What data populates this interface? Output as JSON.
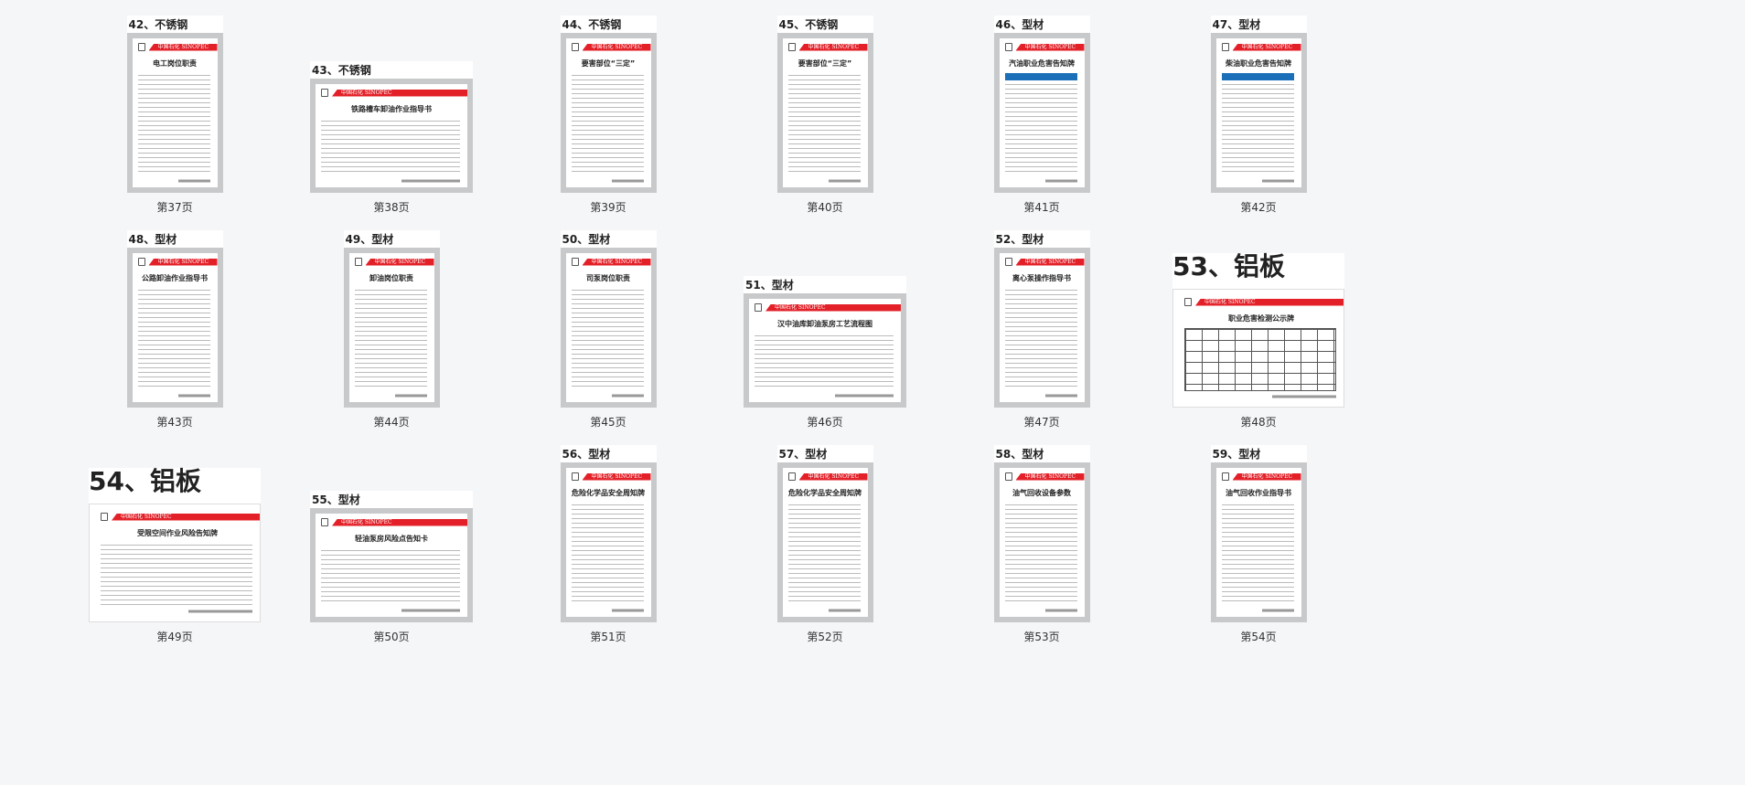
{
  "brand": {
    "band_text": "中国石化 SINOPEC",
    "accent": "#e32028"
  },
  "cards": [
    {
      "label": "42、不锈钢",
      "title": "电工岗位职责",
      "page": "第37页"
    },
    {
      "label": "43、不锈钢",
      "title": "铁路槽车卸油作业指导书",
      "page": "第38页"
    },
    {
      "label": "44、不锈钢",
      "title": "要害部位“三定”",
      "page": "第39页"
    },
    {
      "label": "45、不锈钢",
      "title": "要害部位“三定”",
      "page": "第40页"
    },
    {
      "label": "46、型材",
      "title": "汽油职业危害告知牌",
      "page": "第41页"
    },
    {
      "label": "47、型材",
      "title": "柴油职业危害告知牌",
      "page": "第42页"
    },
    {
      "label": "48、型材",
      "title": "公路卸油作业指导书",
      "page": "第43页"
    },
    {
      "label": "49、型材",
      "title": "卸油岗位职责",
      "page": "第44页"
    },
    {
      "label": "50、型材",
      "title": "司泵岗位职责",
      "page": "第45页"
    },
    {
      "label": "51、型材",
      "title": "汉中油库卸油泵房工艺流程图",
      "page": "第46页"
    },
    {
      "label": "52、型材",
      "title": "离心泵操作指导书",
      "page": "第47页"
    },
    {
      "label": "53、铝板",
      "title": "职业危害检测公示牌",
      "page": "第48页"
    },
    {
      "label": "54、铝板",
      "title": "受限空间作业风险告知牌",
      "page": "第49页"
    },
    {
      "label": "55、型材",
      "title": "轻油泵房风险点告知卡",
      "page": "第50页"
    },
    {
      "label": "56、型材",
      "title": "危险化学品安全周知牌",
      "page": "第51页"
    },
    {
      "label": "57、型材",
      "title": "危险化学品安全周知牌",
      "page": "第52页"
    },
    {
      "label": "58、型材",
      "title": "油气回收设备参数",
      "page": "第53页"
    },
    {
      "label": "59、型材",
      "title": "油气回收作业指导书",
      "page": "第54页"
    }
  ]
}
